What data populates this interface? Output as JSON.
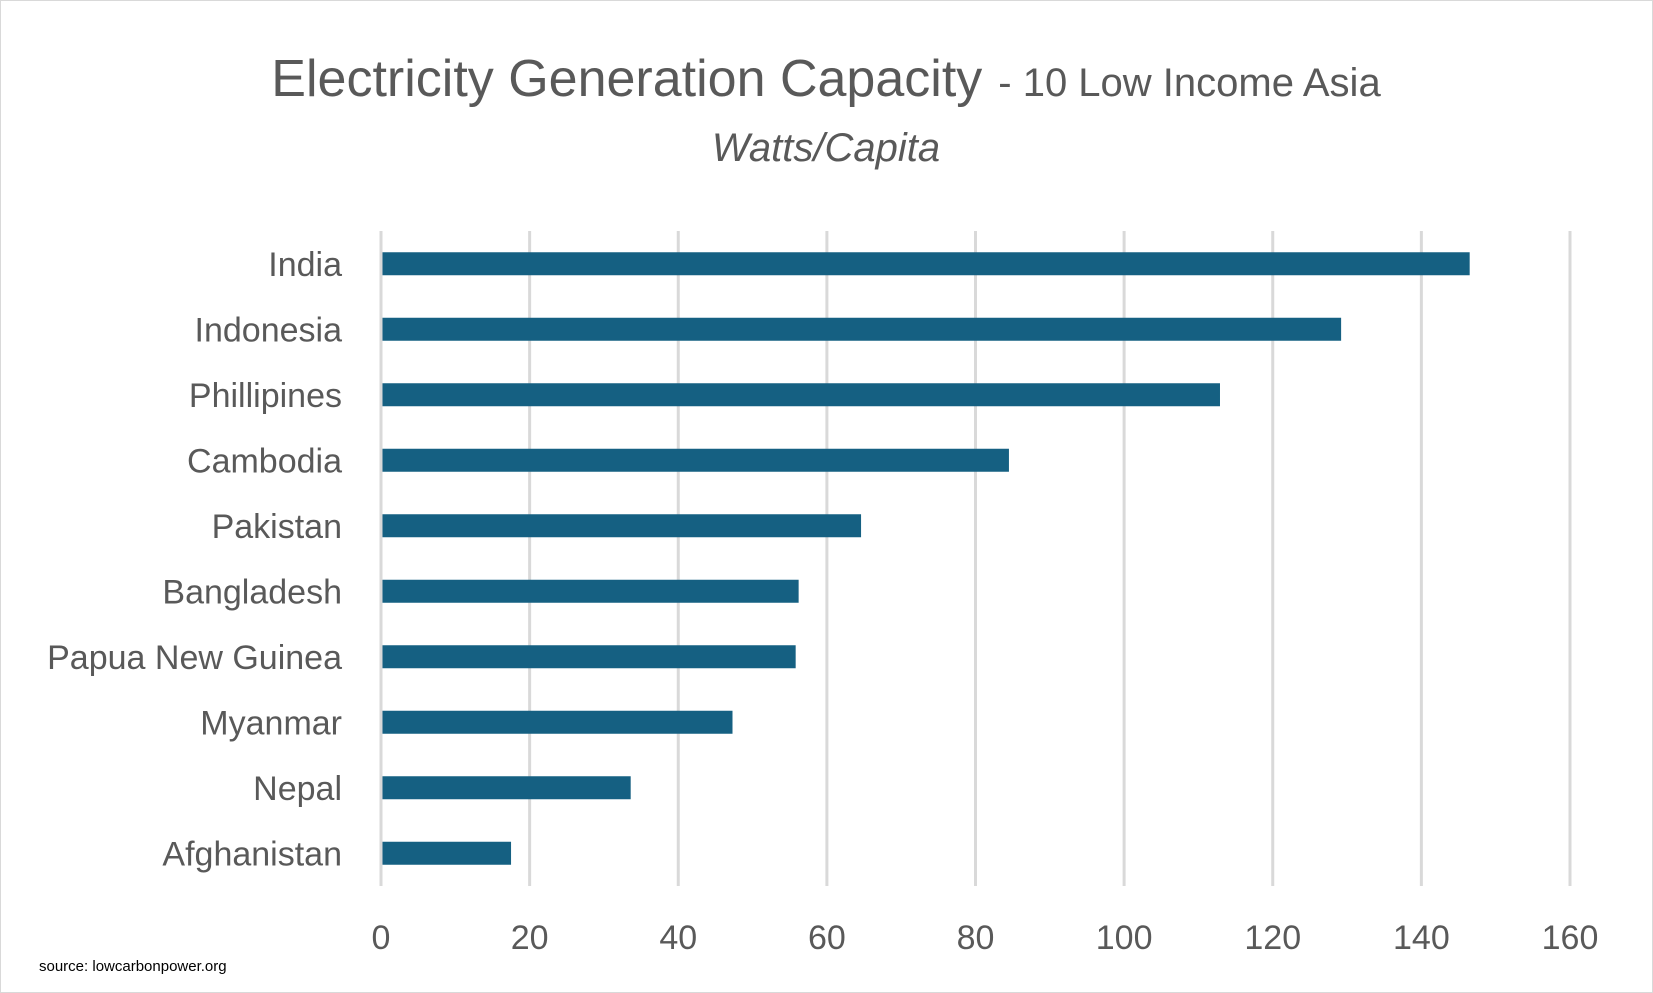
{
  "chart_data": {
    "type": "bar",
    "orientation": "horizontal",
    "title": "Electricity Generation Capacity",
    "title_suffix": "- 10 Low Income Asia",
    "subtitle": "Watts/Capita",
    "categories": [
      "India",
      "Indonesia",
      "Phillipines",
      "Cambodia",
      "Pakistan",
      "Bangladesh",
      "Papua New Guinea",
      "Myanmar",
      "Nepal",
      "Afghanistan"
    ],
    "values": [
      146.5,
      129.2,
      112.9,
      84.5,
      64.6,
      56.2,
      55.8,
      47.3,
      33.6,
      17.5
    ],
    "xlim": [
      0,
      160
    ],
    "xticks": [
      0,
      20,
      40,
      60,
      80,
      100,
      120,
      140,
      160
    ],
    "grid": true,
    "bar_color": "#156082"
  },
  "source": "source: lowcarbonpower.org"
}
